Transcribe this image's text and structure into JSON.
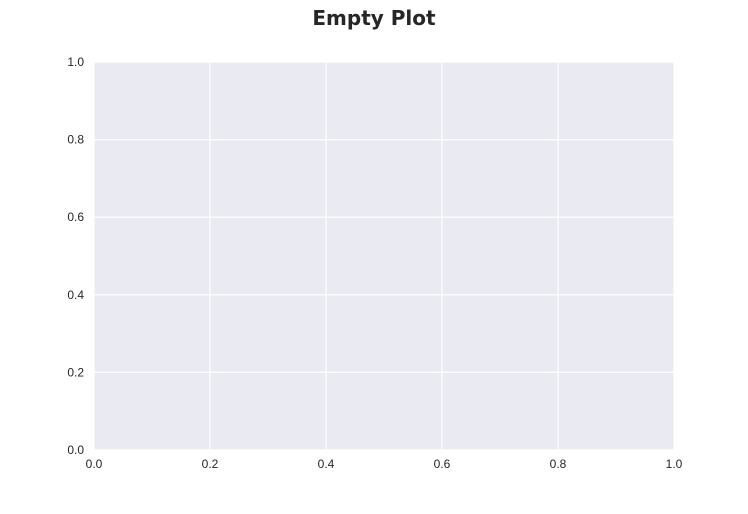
{
  "chart_data": {
    "type": "scatter",
    "title": "Empty Plot",
    "xlabel": "",
    "ylabel": "",
    "series": [],
    "xlim": [
      0.0,
      1.0
    ],
    "ylim": [
      0.0,
      1.0
    ],
    "x_ticks": [
      "0.0",
      "0.2",
      "0.4",
      "0.6",
      "0.8",
      "1.0"
    ],
    "y_ticks": [
      "0.0",
      "0.2",
      "0.4",
      "0.6",
      "0.8",
      "1.0"
    ],
    "grid": true,
    "legend": "none",
    "colors": {
      "plot_background": "#EAEAF2",
      "grid": "#FFFFFF",
      "text": "#262626"
    }
  }
}
